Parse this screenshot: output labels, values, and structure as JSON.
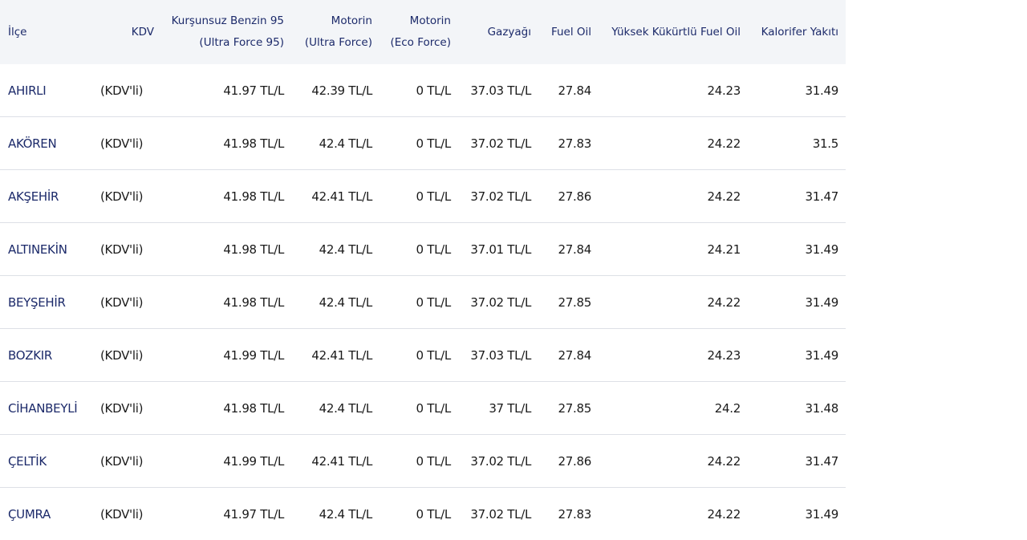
{
  "headers": [
    "İlçe",
    "KDV",
    "Kurşunsuz Benzin 95 (Ultra Force 95)",
    "Motorin (Ultra Force)",
    "Motorin (Eco Force)",
    "Gazyağı",
    "Fuel Oil",
    "Yüksek Kükürtlü Fuel Oil",
    "Kalorifer Yakıtı"
  ],
  "rows": [
    [
      "AHIRLI",
      "(KDV'li)",
      "41.97 TL/L",
      "42.39 TL/L",
      "0 TL/L",
      "37.03 TL/L",
      "27.84",
      "24.23",
      "31.49"
    ],
    [
      "AKÖREN",
      "(KDV'li)",
      "41.98 TL/L",
      "42.4 TL/L",
      "0 TL/L",
      "37.02 TL/L",
      "27.83",
      "24.22",
      "31.5"
    ],
    [
      "AKŞEHİR",
      "(KDV'li)",
      "41.98 TL/L",
      "42.41 TL/L",
      "0 TL/L",
      "37.02 TL/L",
      "27.86",
      "24.22",
      "31.47"
    ],
    [
      "ALTINEKİN",
      "(KDV'li)",
      "41.98 TL/L",
      "42.4 TL/L",
      "0 TL/L",
      "37.01 TL/L",
      "27.84",
      "24.21",
      "31.49"
    ],
    [
      "BEYŞEHİR",
      "(KDV'li)",
      "41.98 TL/L",
      "42.4 TL/L",
      "0 TL/L",
      "37.02 TL/L",
      "27.85",
      "24.22",
      "31.49"
    ],
    [
      "BOZKIR",
      "(KDV'li)",
      "41.99 TL/L",
      "42.41 TL/L",
      "0 TL/L",
      "37.03 TL/L",
      "27.84",
      "24.23",
      "31.49"
    ],
    [
      "CİHANBEYLİ",
      "(KDV'li)",
      "41.98 TL/L",
      "42.4 TL/L",
      "0 TL/L",
      "37 TL/L",
      "27.85",
      "24.2",
      "31.48"
    ],
    [
      "ÇELTİK",
      "(KDV'li)",
      "41.99 TL/L",
      "42.41 TL/L",
      "0 TL/L",
      "37.02 TL/L",
      "27.86",
      "24.22",
      "31.47"
    ],
    [
      "ÇUMRA",
      "(KDV'li)",
      "41.97 TL/L",
      "42.4 TL/L",
      "0 TL/L",
      "37.02 TL/L",
      "27.83",
      "24.22",
      "31.49"
    ]
  ]
}
